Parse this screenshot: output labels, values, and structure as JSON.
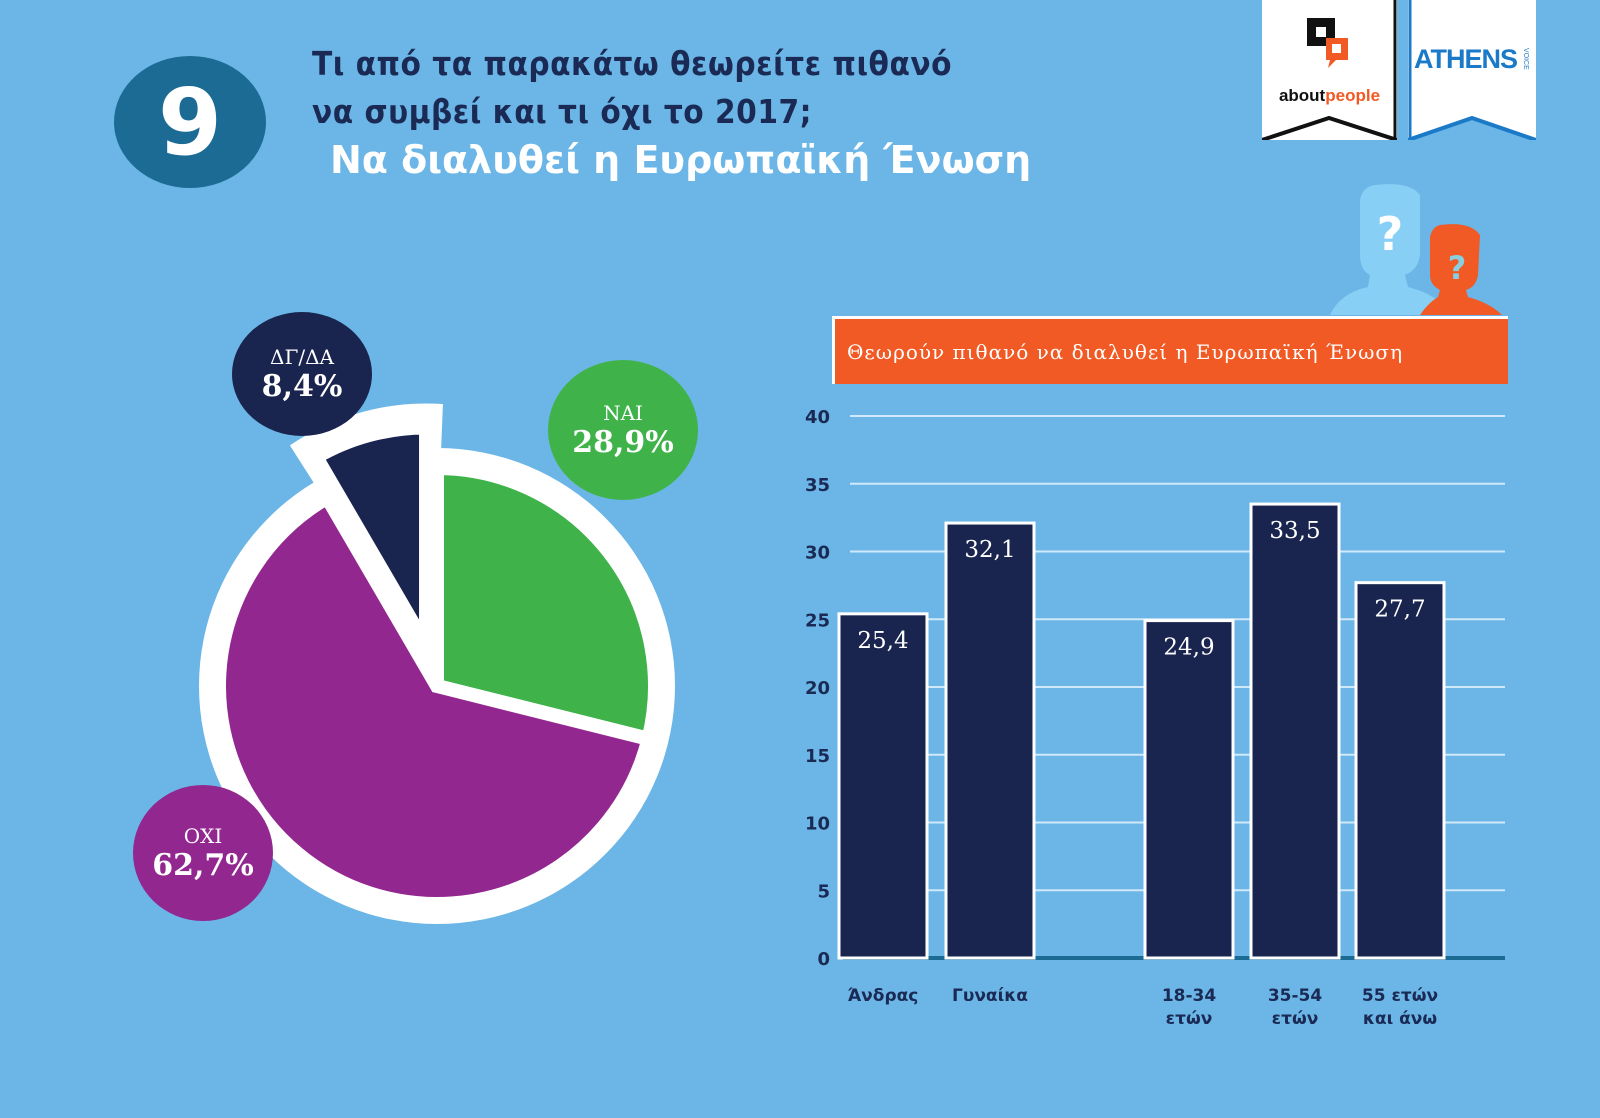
{
  "header": {
    "number": "9",
    "question_line1": "Τι από τα παρακάτω θεωρείτε πιθανό",
    "question_line2": "να συμβεί και τι όχι το 2017;",
    "subtitle": "Να διαλυθεί η Ευρωπαϊκή Ένωση"
  },
  "logos": {
    "about_black": "about",
    "about_orange": "people",
    "athens": "ATHENS",
    "athens_small": "VOICE"
  },
  "colors": {
    "background": "#6bb6e6",
    "yes": "#3fb34a",
    "no": "#92278f",
    "dk": "#1a254f",
    "bar": "#1a254f",
    "banner": "#f15a24",
    "number_circle": "#1b6b95"
  },
  "chart_data": [
    {
      "type": "pie",
      "title": "Να διαλυθεί η Ευρωπαϊκή Ένωση",
      "slices": [
        {
          "label": "ΝΑΙ",
          "value": 28.9,
          "display": "28,9%",
          "color": "#3fb34a"
        },
        {
          "label": "ΟΧΙ",
          "value": 62.7,
          "display": "62,7%",
          "color": "#92278f"
        },
        {
          "label": "ΔΓ/ΔΑ",
          "value": 8.4,
          "display": "8,4%",
          "color": "#1a254f",
          "exploded": true
        }
      ]
    },
    {
      "type": "bar",
      "title": "Θεωρούν πιθανό να διαλυθεί η Ευρωπαϊκή Ένωση",
      "categories": [
        "Άνδρας",
        "Γυναίκα",
        "18-34 ετών",
        "35-54 ετών",
        "55 ετών και άνω"
      ],
      "category_lines": [
        [
          "Άνδρας"
        ],
        [
          "Γυναίκα"
        ],
        [
          "18-34",
          "ετών"
        ],
        [
          "35-54",
          "ετών"
        ],
        [
          "55 ετών",
          "και άνω"
        ]
      ],
      "values": [
        25.4,
        32.1,
        24.9,
        33.5,
        27.7
      ],
      "value_labels": [
        "25,4",
        "32,1",
        "24,9",
        "33,5",
        "27,7"
      ],
      "xlabel": "",
      "ylabel": "",
      "ylim": [
        0,
        40
      ],
      "yticks": [
        0,
        5,
        10,
        15,
        20,
        25,
        30,
        35,
        40
      ],
      "grid": true
    }
  ]
}
